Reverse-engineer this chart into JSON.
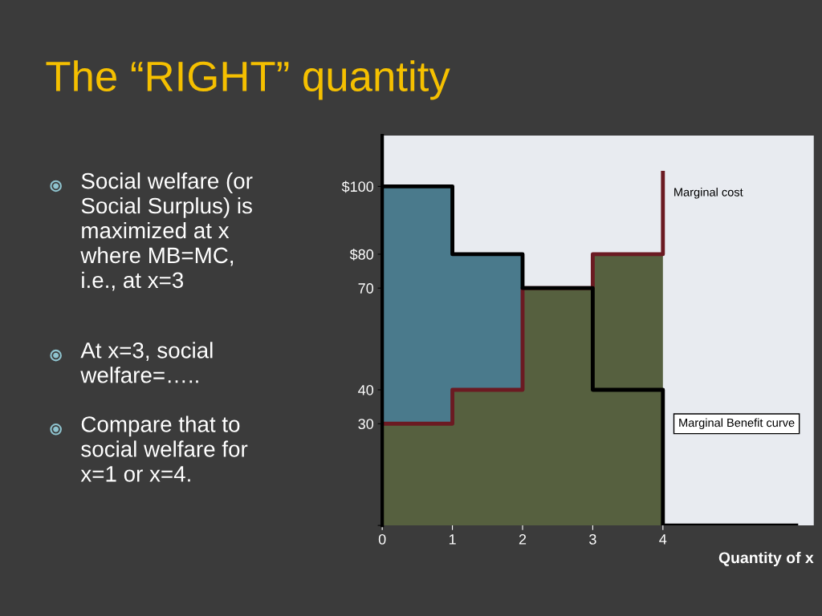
{
  "chart_data": {
    "type": "step",
    "title": "The “RIGHT” quantity",
    "xlabel": "Quantity of x",
    "annotations": [
      "Social welfare (or\nSocial Surplus) is\nmaximized at x\nwhere MB=MC,\ni.e., at x=3",
      "At x=3, social\nwelfare=…..",
      "Compare that to\nsocial welfare for\nx=1 or x=4."
    ],
    "series": [
      {
        "type": "area",
        "color": "#4a7a8c",
        "x": [
          0,
          1,
          2
        ],
        "values": [
          100,
          80,
          70
        ]
      },
      {
        "type": "area",
        "color": "#56603f",
        "x": [
          0,
          1,
          2,
          3,
          4
        ],
        "values": [
          30,
          40,
          70,
          80,
          80
        ]
      },
      {
        "name": "Marginal cost",
        "color": "#6b1a22",
        "x": [
          0,
          1,
          2,
          3,
          4
        ],
        "values": [
          30,
          40,
          70,
          80,
          104
        ]
      },
      {
        "name": "Marginal Benefit curve",
        "color": "#000000",
        "x": [
          0,
          1,
          2,
          3,
          4,
          5.9
        ],
        "values": [
          100,
          80,
          70,
          40,
          0,
          0
        ]
      }
    ],
    "xlim": [
      0,
      6.15
    ],
    "ylim": [
      0,
      115
    ],
    "xticks": [
      0,
      1,
      2,
      3,
      4
    ],
    "yticks": [
      {
        "value": 0,
        "label": null
      },
      30,
      40,
      70,
      {
        "value": 80,
        "label": "$80"
      },
      {
        "value": 100,
        "label": "$100"
      }
    ],
    "grid": false,
    "legend": false
  }
}
